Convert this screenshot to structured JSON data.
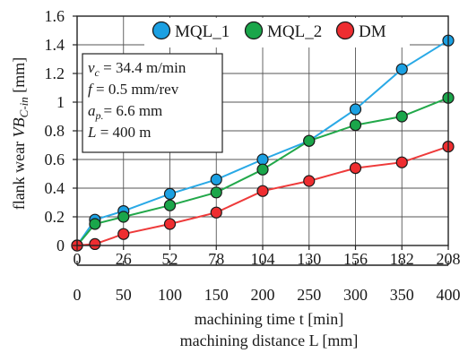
{
  "chart_data": {
    "type": "line",
    "x": [
      0,
      26,
      52,
      78,
      104,
      130,
      156,
      182,
      208
    ],
    "x_secondary": [
      0,
      50,
      100,
      150,
      200,
      250,
      300,
      350,
      400
    ],
    "x_ticks": [
      "0",
      "26",
      "52",
      "78",
      "104",
      "130",
      "156",
      "182",
      "208"
    ],
    "x_ticks_secondary": [
      "0",
      "50",
      "100",
      "150",
      "200",
      "250",
      "300",
      "350",
      "400"
    ],
    "y_ticks": [
      "0",
      "0.2",
      "0.4",
      "0.6",
      "0.8",
      "1",
      "1.2",
      "1.4",
      "1.6"
    ],
    "xlim": [
      0,
      208
    ],
    "ylim": [
      0,
      1.6
    ],
    "grid": true,
    "ylabel_prefix": "flank wear",
    "ylabel_symbol": "VB",
    "ylabel_sub": "C-in",
    "ylabel_unit": "[mm]",
    "xlabel": "machining time t [min]",
    "xlabel_secondary": "machining distance L [mm]",
    "legend_position": "top",
    "series": [
      {
        "name": "MQL_1",
        "color": "#1ba0e2",
        "line_color": "#29a9e6",
        "x": [
          0,
          10,
          26,
          52,
          78,
          104,
          130,
          156,
          182,
          208
        ],
        "values": [
          0,
          0.18,
          0.24,
          0.36,
          0.46,
          0.6,
          0.73,
          0.95,
          1.23,
          1.43
        ]
      },
      {
        "name": "MQL_2",
        "color": "#1aa64a",
        "line_color": "#22a84a",
        "x": [
          0,
          10,
          26,
          52,
          78,
          104,
          130,
          156,
          182,
          208
        ],
        "values": [
          0,
          0.15,
          0.2,
          0.28,
          0.37,
          0.53,
          0.73,
          0.84,
          0.9,
          1.03
        ]
      },
      {
        "name": "DM",
        "color": "#ee2d30",
        "line_color": "#ee3a3a",
        "x": [
          0,
          10,
          26,
          52,
          78,
          104,
          130,
          156,
          182,
          208
        ],
        "values": [
          0,
          0.01,
          0.08,
          0.15,
          0.23,
          0.38,
          0.45,
          0.54,
          0.58,
          0.69
        ]
      }
    ],
    "annotation": {
      "lines": [
        {
          "sym": "v",
          "sub": "c",
          "text": " = 34.4 m/min"
        },
        {
          "sym": "f",
          "sub": "",
          "text": " = 0.5 mm/rev"
        },
        {
          "sym": "a",
          "sub": "p.",
          "text": "= 6.6 mm"
        },
        {
          "sym": "L",
          "sub": "",
          "text": " = 400 m"
        }
      ]
    }
  }
}
